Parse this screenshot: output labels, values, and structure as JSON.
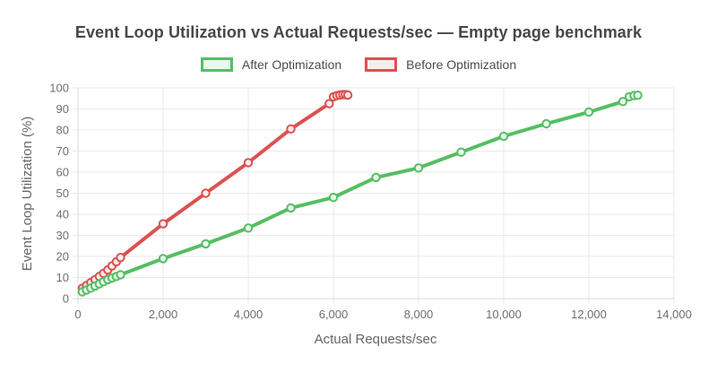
{
  "chart_data": {
    "type": "line",
    "title": "Event Loop Utilization vs Actual Requests/sec — Empty page benchmark",
    "xlabel": "Actual Requests/sec",
    "ylabel": "Event Loop Utilization (%)",
    "xlim": [
      0,
      14000
    ],
    "ylim": [
      0,
      100
    ],
    "x_ticks": [
      0,
      2000,
      4000,
      6000,
      8000,
      10000,
      12000,
      14000
    ],
    "x_tick_labels": [
      "0",
      "2,000",
      "4,000",
      "6,000",
      "8,000",
      "10,000",
      "12,000",
      "14,000"
    ],
    "y_ticks": [
      0,
      10,
      20,
      30,
      40,
      50,
      60,
      70,
      80,
      90,
      100
    ],
    "y_tick_labels": [
      "0",
      "10",
      "20",
      "30",
      "40",
      "50",
      "60",
      "70",
      "80",
      "90",
      "100"
    ],
    "grid": true,
    "legend_position": "top",
    "series": [
      {
        "name": "After Optimization",
        "color": "#55be63",
        "point_fill": "#eaf7ec",
        "points": [
          [
            100,
            3.2
          ],
          [
            200,
            4.1
          ],
          [
            300,
            5.0
          ],
          [
            400,
            6.0
          ],
          [
            500,
            7.0
          ],
          [
            600,
            8.0
          ],
          [
            700,
            9.0
          ],
          [
            800,
            9.8
          ],
          [
            900,
            10.5
          ],
          [
            1000,
            11.3
          ],
          [
            2000,
            19
          ],
          [
            3000,
            26
          ],
          [
            4000,
            33.5
          ],
          [
            5000,
            43
          ],
          [
            6000,
            48
          ],
          [
            7000,
            57.5
          ],
          [
            8000,
            62
          ],
          [
            9000,
            69.5
          ],
          [
            10000,
            77
          ],
          [
            11000,
            83
          ],
          [
            12000,
            88.5
          ],
          [
            12800,
            93.5
          ],
          [
            12950,
            95.8
          ],
          [
            13060,
            96.4
          ],
          [
            13150,
            96.5
          ]
        ]
      },
      {
        "name": "Before Optimization",
        "color": "#dc5151",
        "point_fill": "#fbecec",
        "points": [
          [
            100,
            4.9
          ],
          [
            200,
            6.2
          ],
          [
            300,
            7.6
          ],
          [
            400,
            9.0
          ],
          [
            500,
            10.5
          ],
          [
            600,
            12.0
          ],
          [
            700,
            13.6
          ],
          [
            800,
            15.5
          ],
          [
            900,
            17.5
          ],
          [
            1000,
            19.5
          ],
          [
            2000,
            35.5
          ],
          [
            3000,
            50
          ],
          [
            4000,
            64.5
          ],
          [
            5000,
            80.5
          ],
          [
            5900,
            92.5
          ],
          [
            6000,
            95.8
          ],
          [
            6080,
            96.3
          ],
          [
            6150,
            96.6
          ],
          [
            6220,
            96.8
          ],
          [
            6280,
            96.8
          ],
          [
            6340,
            96.6
          ]
        ]
      }
    ]
  },
  "colors": {
    "title": "#474747",
    "axis_title": "#666666",
    "tick_label": "#6e6e6e",
    "grid": "#e9e9e9",
    "axis_line": "#d9d9d9",
    "background": "#ffffff"
  }
}
